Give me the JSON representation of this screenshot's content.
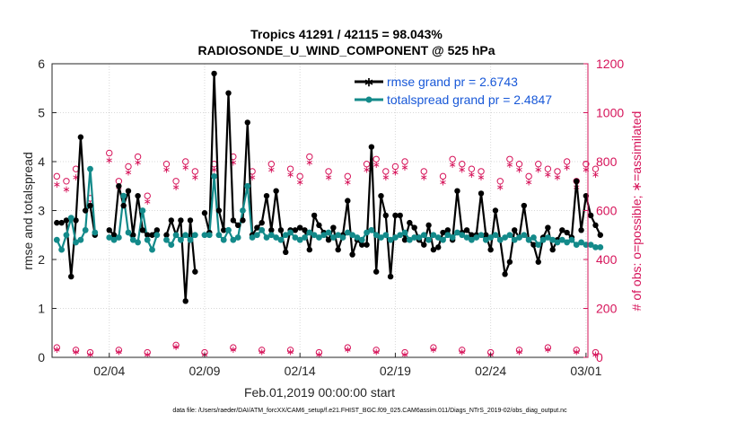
{
  "chart_data": {
    "type": "line",
    "title": "Tropics 41291 / 42115 = 98.043%",
    "subtitle": "RADIOSONDE_U_WIND_COMPONENT @ 525 hPa",
    "xlabel": "Feb.01,2019 00:00:00 start",
    "ylabel": "rmse and totalspread",
    "y2label": "# of obs: o=possible; ∗=assimilated",
    "footnote": "data file: /Users/raeder/DAI/ATM_forcXX/CAM6_setup/f.e21.FHIST_BGC.f09_025.CAM6assim.011/Diags_NTrS_2019-02/obs_diag_output.nc",
    "xlim": [
      1,
      29.1
    ],
    "ylim": [
      0,
      6
    ],
    "y2lim": [
      0,
      1200
    ],
    "xticks": [
      {
        "value": 4,
        "label": "02/04"
      },
      {
        "value": 9,
        "label": "02/09"
      },
      {
        "value": 14,
        "label": "02/14"
      },
      {
        "value": 19,
        "label": "02/19"
      },
      {
        "value": 24,
        "label": "02/24"
      },
      {
        "value": 29,
        "label": "03/01"
      }
    ],
    "yticks": [
      0,
      1,
      2,
      3,
      4,
      5,
      6
    ],
    "y2ticks": [
      0,
      200,
      400,
      600,
      800,
      1000,
      1200
    ],
    "legend": {
      "position": "top-right",
      "entries": [
        "rmse grand pr = 2.6743",
        "totalspread grand pr = 2.4847"
      ]
    },
    "colors": {
      "rmse": "#000000",
      "spread": "#138a8a",
      "obs": "#d6145a",
      "axis": "#262626"
    },
    "series": [
      {
        "name": "rmse grand pr = 2.6743",
        "axis": "left",
        "segments": [
          {
            "x": [
              1.25,
              1.5,
              1.75,
              2.0,
              2.25,
              2.5,
              2.75,
              3.0,
              3.25
            ],
            "y": [
              2.75,
              2.75,
              2.8,
              1.65,
              2.8,
              4.5,
              3.0,
              3.1,
              2.5
            ]
          },
          {
            "x": [
              4.0,
              4.25,
              4.5,
              4.75,
              5.0,
              5.25,
              5.5,
              5.75,
              6.0,
              6.25,
              6.5
            ],
            "y": [
              2.6,
              2.5,
              3.5,
              3.1,
              3.4,
              2.5,
              3.3,
              2.6,
              2.5,
              2.5,
              2.6
            ]
          },
          {
            "x": [
              7.0,
              7.25,
              7.5,
              7.75,
              8.0,
              8.25,
              8.5
            ],
            "y": [
              2.5,
              2.8,
              2.5,
              2.8,
              1.15,
              2.8,
              1.75
            ]
          },
          {
            "x": [
              9.0,
              9.25,
              9.5,
              9.75,
              10.0,
              10.25,
              10.5,
              10.75,
              11.0,
              11.25,
              11.5,
              11.75,
              12.0,
              12.25,
              12.5,
              12.75,
              13.0,
              13.25,
              13.5,
              13.75,
              14.0,
              14.25,
              14.5,
              14.75,
              15.0,
              15.25,
              15.5,
              15.75,
              16.0,
              16.25,
              16.5,
              16.75,
              17.0,
              17.25,
              17.5,
              17.75,
              18.0,
              18.25,
              18.5,
              18.75,
              19.0,
              19.25,
              19.5,
              19.75,
              20.0,
              20.25,
              20.5,
              20.75,
              21.0,
              21.25,
              21.5,
              21.75,
              22.0,
              22.25,
              22.5,
              22.75,
              23.0,
              23.25,
              23.5,
              23.75,
              24.0,
              24.25,
              24.5,
              24.75,
              25.0,
              25.25,
              25.5,
              25.75,
              26.0,
              26.25,
              26.5,
              26.75,
              27.0,
              27.25,
              27.5,
              27.75,
              28.0,
              28.25,
              28.5,
              28.75,
              29.0,
              29.25,
              29.5,
              29.75
            ],
            "y": [
              2.95,
              2.55,
              5.8,
              3.0,
              2.6,
              5.4,
              2.8,
              2.7,
              2.8,
              4.8,
              2.5,
              2.65,
              2.75,
              3.3,
              2.6,
              3.4,
              2.6,
              2.15,
              2.6,
              2.6,
              2.65,
              2.6,
              2.2,
              2.9,
              2.7,
              2.55,
              2.4,
              2.65,
              2.2,
              2.5,
              3.2,
              2.1,
              2.4,
              2.3,
              2.3,
              4.3,
              1.75,
              3.3,
              2.9,
              1.65,
              2.9,
              2.9,
              2.4,
              2.75,
              2.65,
              2.4,
              2.3,
              2.7,
              2.2,
              2.25,
              2.55,
              2.6,
              2.4,
              3.4,
              2.55,
              2.6,
              2.5,
              2.5,
              3.35,
              2.5,
              2.2,
              3.0,
              2.4,
              1.7,
              1.95,
              2.6,
              2.45,
              3.1,
              2.4,
              2.3,
              1.95,
              2.45,
              2.65,
              2.2,
              2.4,
              2.6,
              2.55,
              2.45,
              3.6,
              2.6,
              3.3,
              2.9,
              2.7,
              2.5
            ]
          }
        ]
      },
      {
        "name": "totalspread grand pr = 2.4847",
        "axis": "left",
        "segments": [
          {
            "x": [
              1.25,
              1.5,
              1.75,
              2.0,
              2.25,
              2.5,
              2.75,
              3.0,
              3.25
            ],
            "y": [
              2.4,
              2.2,
              2.5,
              2.85,
              2.35,
              2.4,
              2.6,
              3.85,
              2.55
            ]
          },
          {
            "x": [
              4.0,
              4.25,
              4.5,
              4.75,
              5.0,
              5.25,
              5.5,
              5.75,
              6.0,
              6.25,
              6.5
            ],
            "y": [
              2.45,
              2.4,
              2.45,
              3.3,
              2.55,
              2.4,
              2.35,
              3.0,
              2.4,
              2.2,
              2.5
            ]
          },
          {
            "x": [
              7.0,
              7.25,
              7.5,
              7.75,
              8.0,
              8.25,
              8.5
            ],
            "y": [
              2.4,
              2.3,
              2.5,
              2.4,
              2.5,
              2.4,
              2.5
            ]
          },
          {
            "x": [
              9.0,
              9.25,
              9.5,
              9.75,
              10.0,
              10.25,
              10.5,
              10.75,
              11.0,
              11.25,
              11.5,
              11.75,
              12.0,
              12.25,
              12.5,
              12.75,
              13.0,
              13.25,
              13.5,
              13.75,
              14.0,
              14.25,
              14.5,
              14.75,
              15.0,
              15.25,
              15.5,
              15.75,
              16.0,
              16.25,
              16.5,
              16.75,
              17.0,
              17.25,
              17.5,
              17.75,
              18.0,
              18.25,
              18.5,
              18.75,
              19.0,
              19.25,
              19.5,
              19.75,
              20.0,
              20.25,
              20.5,
              20.75,
              21.0,
              21.25,
              21.5,
              21.75,
              22.0,
              22.25,
              22.5,
              22.75,
              23.0,
              23.25,
              23.5,
              23.75,
              24.0,
              24.25,
              24.5,
              24.75,
              25.0,
              25.25,
              25.5,
              25.75,
              26.0,
              26.25,
              26.5,
              26.75,
              27.0,
              27.25,
              27.5,
              27.75,
              28.0,
              28.25,
              28.5,
              28.75,
              29.0,
              29.25,
              29.5,
              29.75
            ],
            "y": [
              2.5,
              2.5,
              3.7,
              2.5,
              2.4,
              2.6,
              2.4,
              2.45,
              3.0,
              3.5,
              2.45,
              2.5,
              2.6,
              2.45,
              2.5,
              2.45,
              2.4,
              2.5,
              2.55,
              2.45,
              2.4,
              2.45,
              2.55,
              2.5,
              2.45,
              2.5,
              2.55,
              2.45,
              2.5,
              2.45,
              2.55,
              2.5,
              2.45,
              2.4,
              2.55,
              2.6,
              2.5,
              2.45,
              2.5,
              2.4,
              2.45,
              2.5,
              2.55,
              2.4,
              2.45,
              2.45,
              2.5,
              2.4,
              2.5,
              2.45,
              2.4,
              2.5,
              2.45,
              2.55,
              2.5,
              2.45,
              2.4,
              2.45,
              2.5,
              2.4,
              2.45,
              2.5,
              2.4,
              2.45,
              2.5,
              2.4,
              2.45,
              2.5,
              2.4,
              2.45,
              2.3,
              2.4,
              2.45,
              2.4,
              2.35,
              2.4,
              2.35,
              2.4,
              2.3,
              2.35,
              2.3,
              2.3,
              2.25,
              2.25
            ]
          }
        ]
      }
    ],
    "obs_possible": {
      "axis": "right",
      "marker": "o",
      "x": [
        1.25,
        1.75,
        2.25,
        3.0,
        4.0,
        4.5,
        5.0,
        5.5,
        6.0,
        7.0,
        7.5,
        8.0,
        8.5,
        9.5,
        10.5,
        11.5,
        12.5,
        13.5,
        14.0,
        14.5,
        15.5,
        16.5,
        17.5,
        18.0,
        18.5,
        19.0,
        19.5,
        20.5,
        21.5,
        22.0,
        22.5,
        23.0,
        23.5,
        24.5,
        25.0,
        25.5,
        26.0,
        26.5,
        27.0,
        27.5,
        28.0,
        28.5,
        29.0,
        29.5
      ],
      "y": [
        740,
        720,
        770,
        650,
        835,
        720,
        780,
        820,
        660,
        790,
        720,
        800,
        760,
        790,
        820,
        760,
        790,
        770,
        740,
        820,
        760,
        740,
        790,
        810,
        760,
        780,
        800,
        760,
        740,
        810,
        790,
        770,
        760,
        720,
        810,
        790,
        740,
        790,
        770,
        760,
        800,
        720,
        790,
        770
      ],
      "low_x": [
        1.25,
        2.25,
        3.0,
        4.5,
        6.0,
        7.5,
        9.0,
        10.5,
        12.0,
        13.5,
        15.0,
        16.5,
        18.0,
        19.5,
        21.0,
        22.5,
        24.0,
        25.5,
        27.0,
        28.5,
        29.5
      ],
      "low_y": [
        40,
        30,
        20,
        30,
        20,
        50,
        20,
        40,
        30,
        30,
        20,
        40,
        30,
        20,
        40,
        30,
        20,
        30,
        40,
        30,
        20
      ]
    },
    "obs_assimilated": {
      "axis": "right",
      "marker": "*",
      "x": [
        1.25,
        1.75,
        2.25,
        3.0,
        4.0,
        4.5,
        5.0,
        5.5,
        6.0,
        7.0,
        7.5,
        8.0,
        8.5,
        9.5,
        10.5,
        11.5,
        12.5,
        13.5,
        14.0,
        14.5,
        15.5,
        16.5,
        17.5,
        18.0,
        18.5,
        19.0,
        19.5,
        20.5,
        21.5,
        22.0,
        22.5,
        23.0,
        23.5,
        24.5,
        25.0,
        25.5,
        26.0,
        26.5,
        27.0,
        27.5,
        28.0,
        28.5,
        29.0,
        29.5
      ],
      "y": [
        710,
        690,
        740,
        630,
        810,
        700,
        760,
        800,
        640,
        770,
        700,
        780,
        740,
        770,
        800,
        740,
        770,
        750,
        720,
        800,
        740,
        720,
        770,
        790,
        740,
        760,
        780,
        740,
        720,
        790,
        770,
        750,
        740,
        700,
        790,
        770,
        720,
        770,
        750,
        740,
        780,
        700,
        770,
        750
      ],
      "low_x": [
        1.25,
        2.25,
        3.0,
        4.5,
        6.0,
        7.5,
        9.0,
        10.5,
        12.0,
        13.5,
        15.0,
        16.5,
        18.0,
        19.5,
        21.0,
        22.5,
        24.0,
        25.5,
        27.0,
        28.5,
        29.5
      ],
      "low_y": [
        35,
        25,
        15,
        25,
        15,
        45,
        15,
        35,
        25,
        25,
        15,
        35,
        25,
        15,
        35,
        25,
        15,
        25,
        35,
        25,
        15
      ]
    }
  }
}
